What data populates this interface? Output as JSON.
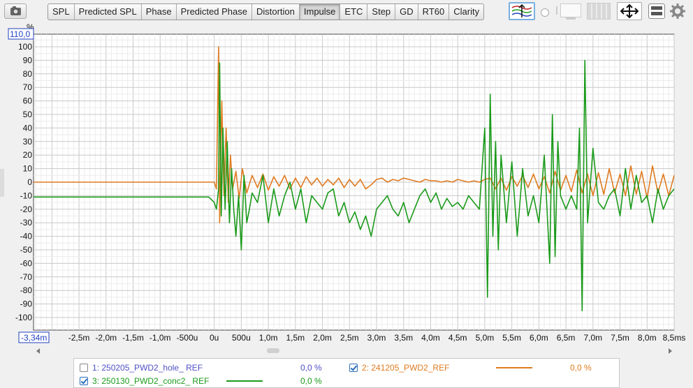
{
  "toolbar": {
    "camera_icon": "camera-icon",
    "tabs": [
      {
        "label": "SPL"
      },
      {
        "label": "Predicted SPL"
      },
      {
        "label": "Phase"
      },
      {
        "label": "Predicted Phase"
      },
      {
        "label": "Distortion"
      },
      {
        "label": "Impulse",
        "active": true
      },
      {
        "label": "ETC"
      },
      {
        "label": "Step"
      },
      {
        "label": "GD"
      },
      {
        "label": "RT60"
      },
      {
        "label": "Clarity"
      }
    ]
  },
  "axis": {
    "y_unit": "%",
    "y_max_label": "110,0",
    "x_min_label": "-3,34m"
  },
  "legend": {
    "items": [
      {
        "label": "1: 250205_PWD2_hole_ REF",
        "value": "0,0 %",
        "checked": false,
        "color": "#5050c8",
        "line": false
      },
      {
        "label": "2: 241205_PWD2_REF",
        "value": "0,0 %",
        "checked": true,
        "color": "#e07b20",
        "line": true
      },
      {
        "label": "3: 250130_PWD2_conc2_ REF",
        "value": "0,0 %",
        "checked": true,
        "color": "#1a9a1a",
        "line": true
      }
    ]
  },
  "chart_data": {
    "type": "line",
    "xlabel": "",
    "ylabel": "%",
    "xlim": [
      -3.34,
      8.5
    ],
    "ylim": [
      -110,
      110
    ],
    "x_ticks": [
      -2.5,
      -2.0,
      -1.5,
      -1.0,
      -0.5,
      0,
      0.5,
      1.0,
      1.5,
      2.0,
      2.5,
      3.0,
      3.5,
      4.0,
      4.5,
      5.0,
      5.5,
      6.0,
      6.5,
      7.0,
      7.5,
      8.0,
      8.5
    ],
    "x_tick_labels": [
      "-2,5m",
      "-2,0m",
      "-1,5m",
      "-1,0m",
      "-500u",
      "0u",
      "500u",
      "1,0m",
      "1,5m",
      "2,0m",
      "2,5m",
      "3,0m",
      "3,5m",
      "4,0m",
      "4,5m",
      "5,0m",
      "5,5m",
      "6,0m",
      "6,5m",
      "7,0m",
      "7,5m",
      "8,0m",
      "8,5ms"
    ],
    "y_ticks": [
      100,
      90,
      80,
      70,
      60,
      50,
      40,
      30,
      20,
      10,
      0,
      -10,
      -20,
      -30,
      -40,
      -50,
      -60,
      -70,
      -80,
      -90,
      -100
    ],
    "grid": true,
    "series": [
      {
        "name": "2: 241205_PWD2_REF",
        "color": "#e07b20",
        "x": [
          -3.34,
          -0.1,
          0.0,
          0.04,
          0.08,
          0.1,
          0.14,
          0.18,
          0.22,
          0.26,
          0.3,
          0.34,
          0.4,
          0.46,
          0.52,
          0.6,
          0.7,
          0.8,
          0.9,
          1.0,
          1.1,
          1.2,
          1.3,
          1.4,
          1.5,
          1.6,
          1.7,
          1.8,
          1.9,
          2.0,
          2.1,
          2.2,
          2.3,
          2.4,
          2.5,
          2.6,
          2.7,
          2.8,
          2.9,
          3.0,
          3.1,
          3.2,
          3.3,
          3.4,
          3.5,
          3.6,
          3.7,
          3.8,
          3.9,
          4.0,
          4.1,
          4.2,
          4.3,
          4.4,
          4.5,
          4.6,
          4.7,
          4.8,
          4.9,
          5.0,
          5.1,
          5.2,
          5.3,
          5.4,
          5.5,
          5.6,
          5.7,
          5.8,
          5.9,
          6.0,
          6.1,
          6.2,
          6.3,
          6.4,
          6.5,
          6.6,
          6.7,
          6.8,
          6.9,
          7.0,
          7.1,
          7.2,
          7.3,
          7.4,
          7.5,
          7.6,
          7.7,
          7.8,
          7.9,
          8.0,
          8.1,
          8.2,
          8.3,
          8.4,
          8.5
        ],
        "y": [
          0,
          0,
          0,
          -5,
          100,
          -30,
          60,
          -10,
          40,
          -15,
          20,
          -5,
          8,
          -12,
          10,
          -8,
          5,
          -4,
          6,
          -6,
          4,
          -3,
          5,
          -5,
          3,
          -4,
          4,
          -2,
          3,
          -3,
          2,
          -2,
          3,
          -4,
          2,
          -3,
          2,
          -5,
          -2,
          2,
          3,
          0,
          2,
          1,
          3,
          2,
          1,
          0,
          2,
          1,
          1,
          0,
          1,
          0,
          2,
          1,
          0,
          1,
          0,
          2,
          3,
          -5,
          3,
          -6,
          4,
          -3,
          5,
          -4,
          6,
          -5,
          4,
          -8,
          8,
          -6,
          5,
          -7,
          9,
          -8,
          6,
          -10,
          7,
          -9,
          10,
          -8,
          6,
          -10,
          12,
          -9,
          8,
          -12,
          12,
          -8,
          6,
          -10,
          5
        ]
      },
      {
        "name": "3: 250130_PWD2_conc2_ REF",
        "color": "#1a9a1a",
        "x": [
          -3.34,
          -0.1,
          0.0,
          0.04,
          0.08,
          0.1,
          0.13,
          0.16,
          0.2,
          0.24,
          0.28,
          0.32,
          0.36,
          0.4,
          0.45,
          0.5,
          0.55,
          0.6,
          0.65,
          0.7,
          0.8,
          0.9,
          1.0,
          1.1,
          1.2,
          1.3,
          1.4,
          1.5,
          1.6,
          1.7,
          1.8,
          1.9,
          2.0,
          2.1,
          2.2,
          2.3,
          2.4,
          2.5,
          2.6,
          2.7,
          2.8,
          2.9,
          3.0,
          3.1,
          3.2,
          3.3,
          3.4,
          3.5,
          3.6,
          3.7,
          3.8,
          3.9,
          4.0,
          4.1,
          4.2,
          4.3,
          4.4,
          4.5,
          4.6,
          4.7,
          4.8,
          4.9,
          5.0,
          5.05,
          5.1,
          5.15,
          5.2,
          5.25,
          5.3,
          5.4,
          5.5,
          5.6,
          5.7,
          5.8,
          5.9,
          6.0,
          6.1,
          6.2,
          6.25,
          6.3,
          6.35,
          6.4,
          6.45,
          6.5,
          6.6,
          6.7,
          6.75,
          6.8,
          6.85,
          6.9,
          7.0,
          7.1,
          7.2,
          7.3,
          7.4,
          7.5,
          7.6,
          7.7,
          7.8,
          7.9,
          8.0,
          8.1,
          8.2,
          8.3,
          8.4,
          8.5
        ],
        "y": [
          -11,
          -11,
          -15,
          -20,
          -5,
          88,
          -25,
          40,
          -20,
          30,
          -30,
          10,
          -20,
          -40,
          -10,
          -50,
          5,
          -30,
          -20,
          -8,
          -15,
          5,
          -30,
          -5,
          -25,
          -10,
          0,
          -20,
          -5,
          -30,
          -10,
          -15,
          -20,
          -8,
          -5,
          -25,
          -15,
          -30,
          -22,
          -35,
          -25,
          -40,
          -20,
          -15,
          -10,
          -20,
          -25,
          -15,
          -30,
          -20,
          -10,
          -5,
          -15,
          -8,
          -20,
          -12,
          -18,
          -15,
          -20,
          -10,
          -15,
          -20,
          40,
          -85,
          65,
          -40,
          30,
          -50,
          20,
          -30,
          15,
          -40,
          10,
          -25,
          -10,
          -30,
          20,
          -60,
          50,
          -55,
          30,
          -10,
          -15,
          -20,
          -10,
          -20,
          40,
          -95,
          90,
          -30,
          25,
          -15,
          -20,
          -10,
          -5,
          -25,
          10,
          -20,
          5,
          -15,
          -10,
          -30,
          -5,
          -20,
          -10,
          -5
        ]
      }
    ]
  }
}
